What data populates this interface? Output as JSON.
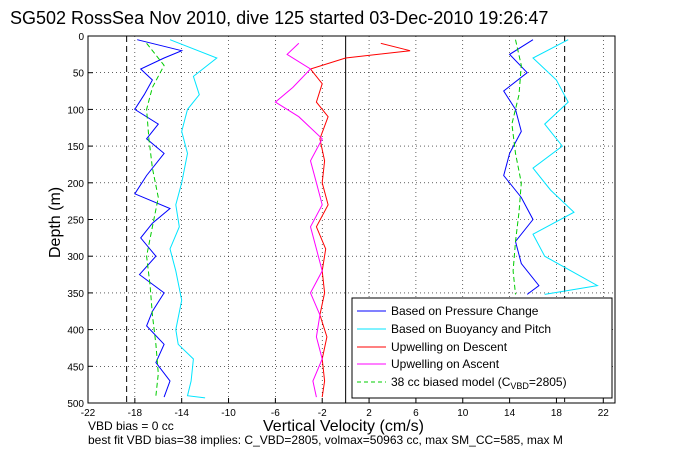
{
  "chart_data": {
    "type": "line",
    "title": "SG502 RossSea Nov 2010, dive 125 started 03-Dec-2010 19:26:47",
    "xlabel": "Vertical Velocity (cm/s)",
    "ylabel": "Depth (m)",
    "xlim": [
      -22,
      23
    ],
    "ylim": [
      500,
      0
    ],
    "x_ticks": [
      -22,
      -18,
      -14,
      -10,
      -6,
      -2,
      2,
      6,
      10,
      14,
      18,
      22
    ],
    "y_ticks": [
      0,
      50,
      100,
      150,
      200,
      250,
      300,
      350,
      400,
      450,
      500
    ],
    "grid": true,
    "legend_position": "bottom-right",
    "reference_lines_x": [
      -18.7,
      18.7
    ],
    "zero_line_x": 0,
    "series": [
      {
        "name": "Based on Pressure Change",
        "color": "#0000ff",
        "style": "solid",
        "points": [
          [
            -17.8,
            5
          ],
          [
            -14,
            20
          ],
          [
            -15.5,
            30
          ],
          [
            -17.5,
            45
          ],
          [
            -16.5,
            60
          ],
          [
            -17.2,
            80
          ],
          [
            -18,
            100
          ],
          [
            -16,
            120
          ],
          [
            -17,
            140
          ],
          [
            -15.5,
            160
          ],
          [
            -17,
            190
          ],
          [
            -18,
            215
          ],
          [
            -15,
            235
          ],
          [
            -16.5,
            255
          ],
          [
            -17.5,
            275
          ],
          [
            -16.2,
            300
          ],
          [
            -17.6,
            325
          ],
          [
            -15.5,
            350
          ],
          [
            -16.5,
            375
          ],
          [
            -17,
            395
          ],
          [
            -15.5,
            420
          ],
          [
            -16.2,
            445
          ],
          [
            -15,
            470
          ],
          [
            -15.5,
            492
          ]
        ]
      },
      {
        "name": "Based on Buoyancy and Pitch",
        "color": "#00e5ff",
        "style": "solid",
        "points": [
          [
            -15,
            5
          ],
          [
            -11,
            30
          ],
          [
            -13,
            55
          ],
          [
            -12.5,
            80
          ],
          [
            -13.5,
            100
          ],
          [
            -14,
            130
          ],
          [
            -13.5,
            160
          ],
          [
            -14,
            200
          ],
          [
            -14.5,
            230
          ],
          [
            -14.2,
            260
          ],
          [
            -15,
            290
          ],
          [
            -14.5,
            320
          ],
          [
            -14,
            360
          ],
          [
            -14.5,
            400
          ],
          [
            -14.3,
            420
          ],
          [
            -13,
            440
          ],
          [
            -13.2,
            470
          ],
          [
            -13.5,
            490
          ],
          [
            -12,
            493
          ]
        ]
      },
      {
        "name": "Upwelling on Descent",
        "color": "#ff0000",
        "style": "solid",
        "points": [
          [
            3,
            10
          ],
          [
            5.5,
            20
          ],
          [
            0,
            30
          ],
          [
            -3,
            45
          ],
          [
            -2,
            65
          ],
          [
            -2.5,
            90
          ],
          [
            -1.5,
            110
          ],
          [
            -2.2,
            140
          ],
          [
            -1.8,
            170
          ],
          [
            -2,
            200
          ],
          [
            -1.5,
            230
          ],
          [
            -2.5,
            260
          ],
          [
            -1.7,
            290
          ],
          [
            -2,
            320
          ],
          [
            -1.8,
            350
          ],
          [
            -2.2,
            380
          ],
          [
            -1.6,
            410
          ],
          [
            -2,
            440
          ],
          [
            -1.8,
            470
          ],
          [
            -2,
            492
          ]
        ]
      },
      {
        "name": "Upwelling on Ascent",
        "color": "#ff00ff",
        "style": "solid",
        "points": [
          [
            -4,
            10
          ],
          [
            -5,
            25
          ],
          [
            -3,
            45
          ],
          [
            -4.5,
            70
          ],
          [
            -6,
            90
          ],
          [
            -4,
            110
          ],
          [
            -2,
            140
          ],
          [
            -3,
            170
          ],
          [
            -2.5,
            200
          ],
          [
            -2,
            230
          ],
          [
            -3,
            260
          ],
          [
            -2.5,
            290
          ],
          [
            -2,
            320
          ],
          [
            -3,
            350
          ],
          [
            -2.2,
            380
          ],
          [
            -2.5,
            410
          ],
          [
            -2,
            440
          ],
          [
            -2.8,
            470
          ],
          [
            -2.5,
            492
          ]
        ]
      },
      {
        "name": "38 cc biased model (C_VBD=2805)",
        "color": "#00cc00",
        "style": "dashed",
        "points": [
          [
            -17,
            10
          ],
          [
            -15.5,
            40
          ],
          [
            -16.5,
            70
          ],
          [
            -17,
            100
          ],
          [
            -16.8,
            140
          ],
          [
            -16.5,
            180
          ],
          [
            -16,
            220
          ],
          [
            -16.5,
            260
          ],
          [
            -17,
            300
          ],
          [
            -16.7,
            340
          ],
          [
            -16.5,
            380
          ],
          [
            -16.2,
            420
          ],
          [
            -16,
            460
          ],
          [
            -16.2,
            490
          ]
        ]
      },
      {
        "name": "",
        "color": "#00e5ff",
        "style": "solid",
        "points": [
          [
            19,
            5
          ],
          [
            16,
            30
          ],
          [
            18,
            60
          ],
          [
            19,
            90
          ],
          [
            17,
            120
          ],
          [
            18.5,
            150
          ],
          [
            16,
            180
          ],
          [
            17.5,
            210
          ],
          [
            19.5,
            240
          ],
          [
            16,
            270
          ],
          [
            17,
            300
          ],
          [
            21.5,
            340
          ],
          [
            17,
            352
          ]
        ]
      },
      {
        "name": "",
        "color": "#0000ff",
        "style": "solid",
        "points": [
          [
            16,
            5
          ],
          [
            14,
            25
          ],
          [
            15.5,
            50
          ],
          [
            13.5,
            75
          ],
          [
            14.5,
            100
          ],
          [
            15,
            130
          ],
          [
            14,
            160
          ],
          [
            13.5,
            190
          ],
          [
            15,
            220
          ],
          [
            16,
            250
          ],
          [
            14.5,
            280
          ],
          [
            15,
            310
          ],
          [
            16.5,
            340
          ],
          [
            15.5,
            352
          ]
        ]
      },
      {
        "name": "",
        "color": "#00cc00",
        "style": "dashed",
        "points": [
          [
            14.5,
            5
          ],
          [
            15,
            40
          ],
          [
            14.8,
            80
          ],
          [
            14.2,
            120
          ],
          [
            14.5,
            160
          ],
          [
            15,
            200
          ],
          [
            14.8,
            240
          ],
          [
            14.5,
            280
          ],
          [
            14.3,
            320
          ],
          [
            14.5,
            352
          ]
        ]
      }
    ]
  },
  "legend": {
    "items": [
      {
        "label": "Based on Pressure Change",
        "color": "#0000ff",
        "style": "solid"
      },
      {
        "label": "Based on Buoyancy and Pitch",
        "color": "#00e5ff",
        "style": "solid"
      },
      {
        "label": "Upwelling on Descent",
        "color": "#ff0000",
        "style": "solid"
      },
      {
        "label": "Upwelling on Ascent",
        "color": "#ff00ff",
        "style": "solid"
      },
      {
        "label": "38 cc biased model (C",
        "sub": "VBD",
        "tail": "=2805)",
        "color": "#00cc00",
        "style": "dashed"
      }
    ]
  },
  "footer": {
    "line1": "VBD bias = 0 cc",
    "line2": "best fit VBD bias=38 implies: C_VBD=2805, volmax=50963 cc, max SM_CC=585, max M"
  }
}
